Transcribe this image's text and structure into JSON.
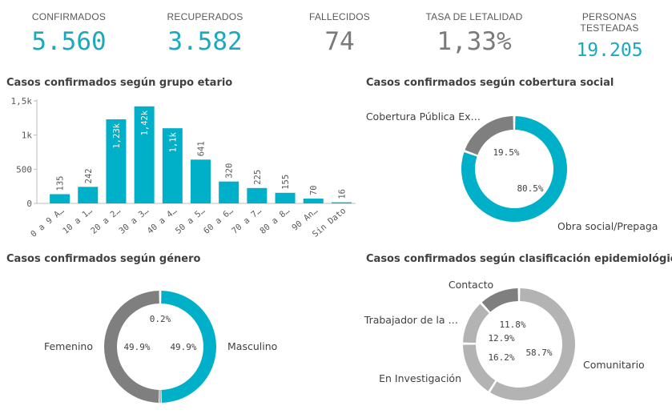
{
  "kpis": {
    "confirmed": {
      "label": "CONFIRMADOS",
      "value": "5.560",
      "color": "#1aa9be"
    },
    "recovered": {
      "label": "RECUPERADOS",
      "value": "3.582",
      "color": "#1aa9be"
    },
    "deceased": {
      "label": "FALLECIDOS",
      "value": "74",
      "color": "#7a7a7a"
    },
    "lethality": {
      "label": "TASA DE LETALIDAD",
      "value": "1,33%",
      "color": "#7a7a7a"
    },
    "tested": {
      "label": "PERSONAS TESTEADAS",
      "value": "19.205",
      "color": "#1aa9be"
    }
  },
  "colors": {
    "teal": "#00b0c8",
    "dark_gray": "#7f7f7f",
    "light_gray": "#b3b3b3",
    "mid_gray": "#a0a0a0"
  },
  "chart_data": [
    {
      "type": "bar",
      "title": "Casos confirmados según grupo etario",
      "categories": [
        "0 a 9 A…",
        "10 a 1…",
        "20 a 2…",
        "30 a 3…",
        "40 a 4…",
        "50 a 5…",
        "60 a 6…",
        "70 a 7…",
        "80 a 8…",
        "90 An…",
        "Sin Dato"
      ],
      "values": [
        135,
        242,
        1230,
        1420,
        1100,
        641,
        320,
        225,
        155,
        70,
        16
      ],
      "data_labels": [
        "135",
        "242",
        "1,23k",
        "1,42k",
        "1,1k",
        "641",
        "320",
        "225",
        "155",
        "70",
        "16"
      ],
      "y_ticks": [
        {
          "value": 0,
          "label": "0"
        },
        {
          "value": 500,
          "label": "500"
        },
        {
          "value": 1000,
          "label": "1k"
        },
        {
          "value": 1500,
          "label": "1,5k"
        }
      ],
      "ylim": [
        0,
        1500
      ],
      "grid": false,
      "color": "#00b0c8"
    },
    {
      "type": "pie",
      "title": "Casos confirmados según cobertura social",
      "slices": [
        {
          "name": "Cobertura Pública Ex…",
          "value": 19.5,
          "pct_label": "19.5%",
          "color": "#7f7f7f"
        },
        {
          "name": "Obra social/Prepaga",
          "value": 80.5,
          "pct_label": "80.5%",
          "color": "#00b0c8"
        }
      ]
    },
    {
      "type": "pie",
      "title": "Casos confirmados según género",
      "slices": [
        {
          "name": "Masculino",
          "value": 49.9,
          "pct_label": "49.9%",
          "color": "#00b0c8"
        },
        {
          "name": "",
          "value": 0.2,
          "pct_label": "0.2%",
          "color": "#b3b3b3"
        },
        {
          "name": "Femenino",
          "value": 49.9,
          "pct_label": "49.9%",
          "color": "#7f7f7f"
        }
      ]
    },
    {
      "type": "pie",
      "title": "Casos confirmados según clasificación epidemiológica",
      "slices": [
        {
          "name": "Comunitario",
          "value": 58.7,
          "pct_label": "58.7%",
          "color": "#b3b3b3"
        },
        {
          "name": "En Investigación",
          "value": 16.2,
          "pct_label": "16.2%",
          "color": "#b3b3b3"
        },
        {
          "name": "Trabajador de la …",
          "value": 12.9,
          "pct_label": "12.9%",
          "color": "#b3b3b3"
        },
        {
          "name": "Contacto",
          "value": 11.8,
          "pct_label": "11.8%",
          "color": "#7f7f7f"
        }
      ]
    }
  ]
}
